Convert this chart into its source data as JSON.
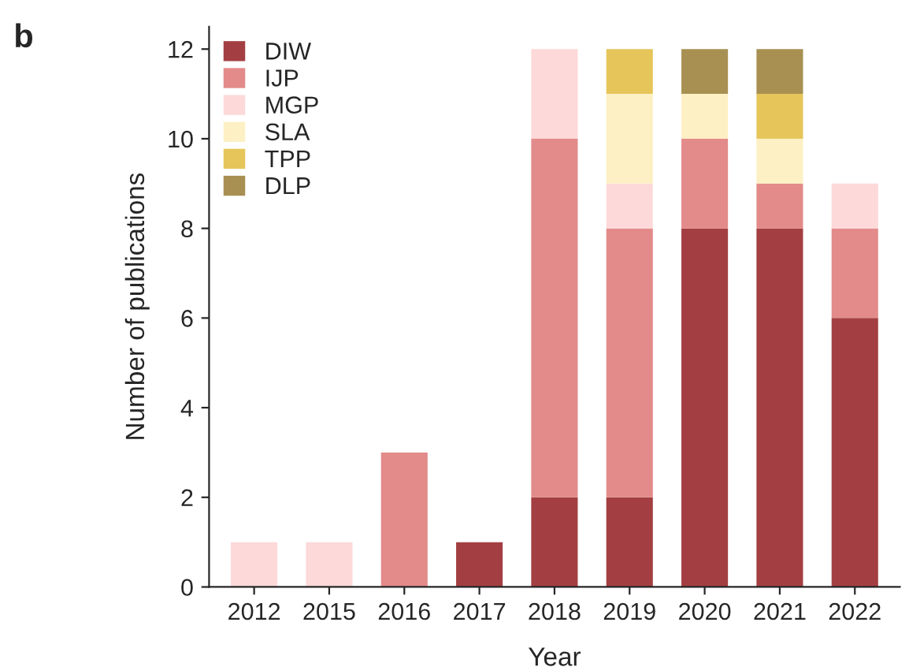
{
  "chart_data": {
    "type": "bar",
    "stacked": true,
    "xlabel": "Year",
    "ylabel": "Number of publications",
    "annotations": [
      "b"
    ],
    "categories": [
      "2012",
      "2015",
      "2016",
      "2017",
      "2018",
      "2019",
      "2020",
      "2021",
      "2022"
    ],
    "series": [
      {
        "name": "DIW",
        "color": "#a33f42",
        "values": [
          0,
          0,
          0,
          1,
          2,
          2,
          8,
          8,
          6
        ]
      },
      {
        "name": "IJP",
        "color": "#e38a8a",
        "values": [
          0,
          0,
          3,
          0,
          8,
          6,
          2,
          1,
          2
        ]
      },
      {
        "name": "MGP",
        "color": "#fdd9d9",
        "values": [
          1,
          1,
          0,
          0,
          2,
          1,
          0,
          0,
          1
        ]
      },
      {
        "name": "SLA",
        "color": "#fdf0c4",
        "values": [
          0,
          0,
          0,
          0,
          0,
          2,
          1,
          1,
          0
        ]
      },
      {
        "name": "TPP",
        "color": "#e6c55a",
        "values": [
          0,
          0,
          0,
          0,
          0,
          1,
          0,
          1,
          0
        ]
      },
      {
        "name": "DLP",
        "color": "#a89052",
        "values": [
          0,
          0,
          0,
          0,
          0,
          0,
          1,
          1,
          0
        ]
      }
    ],
    "ylim": [
      0,
      12.5
    ],
    "yticks": [
      0,
      2,
      4,
      6,
      8,
      10,
      12
    ],
    "grid": false,
    "legend": "top left"
  }
}
